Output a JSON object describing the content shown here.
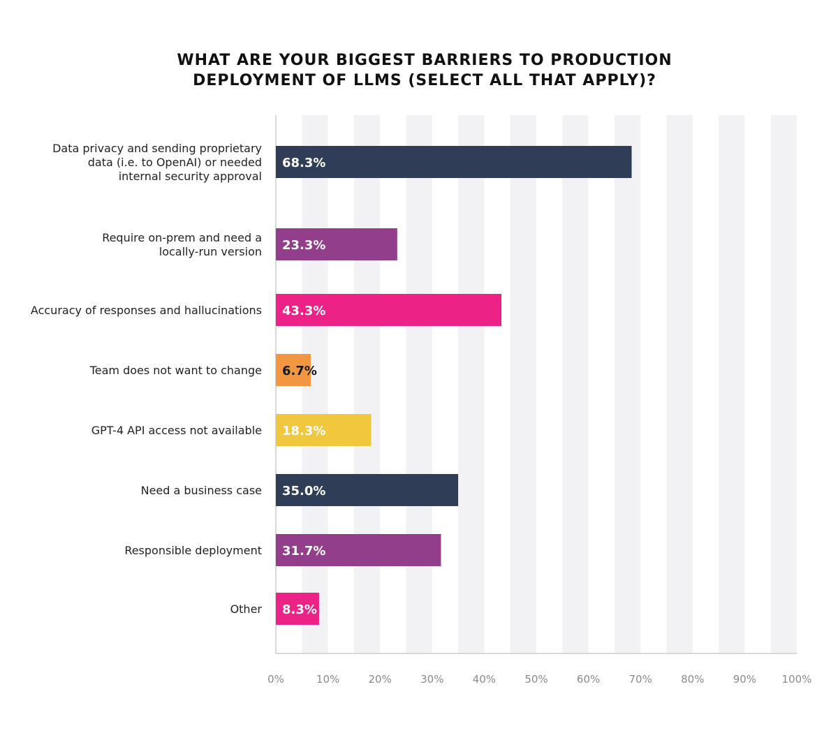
{
  "chart_data": {
    "type": "bar",
    "orientation": "horizontal",
    "title_lines": [
      "WHAT ARE YOUR BIGGEST BARRIERS TO PRODUCTION",
      "DEPLOYMENT OF LLMS (SELECT ALL THAT APPLY)?"
    ],
    "xlabel": "",
    "ylabel": "",
    "xlim": [
      0,
      100
    ],
    "x_ticks": [
      "0%",
      "10%",
      "20%",
      "30%",
      "40%",
      "50%",
      "60%",
      "70%",
      "80%",
      "90%",
      "100%"
    ],
    "grid": "alternating vertical bands",
    "categories": [
      [
        "Data privacy and sending proprietary",
        "data (i.e. to OpenAI) or needed",
        "internal security approval"
      ],
      [
        "Require on-prem and need a",
        "locally-run version"
      ],
      [
        "Accuracy of responses and hallucinations"
      ],
      [
        "Team does not want to change"
      ],
      [
        "GPT-4 API access not available"
      ],
      [
        "Need a business case"
      ],
      [
        "Responsible deployment"
      ],
      [
        "Other"
      ]
    ],
    "values": [
      68.3,
      23.3,
      43.3,
      6.7,
      18.3,
      35.0,
      31.7,
      8.3
    ],
    "value_labels": [
      "68.3%",
      "23.3%",
      "43.3%",
      "6.7%",
      "18.3%",
      "35.0%",
      "31.7%",
      "8.3%"
    ],
    "colors": [
      "#2f3e56",
      "#933e8b",
      "#ec2287",
      "#f29641",
      "#f0c73d",
      "#2f3e56",
      "#933e8b",
      "#ec2287"
    ],
    "label_colors": [
      "#ffffff",
      "#ffffff",
      "#ffffff",
      "#1a1a1a",
      "#ffffff",
      "#ffffff",
      "#ffffff",
      "#ffffff"
    ],
    "band_color": "#f2f2f4",
    "axis_color": "#cccccc"
  }
}
